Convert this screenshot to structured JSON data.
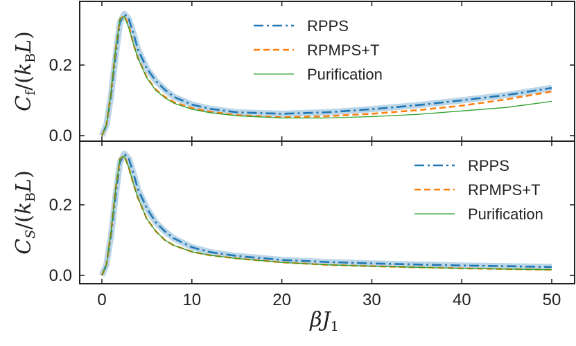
{
  "chart_data": [
    {
      "type": "line",
      "panel": "top",
      "ylabel_parts": {
        "C": "C",
        "sub": "f",
        "slash_open": "/(",
        "k": "k",
        "ksub": "B",
        "L": "L",
        "close": ")"
      },
      "xlim": [
        0,
        50
      ],
      "ylim": [
        0,
        0.35
      ],
      "yticks": [
        0.0,
        0.2
      ],
      "ytick_labels": [
        "0.0",
        "0.2"
      ],
      "legend_placement": "top-right",
      "series": [
        {
          "name": "RPPS",
          "color": "#1f77b4",
          "style": "dashdot",
          "band": true,
          "x": [
            0,
            0.5,
            1,
            1.5,
            2,
            2.5,
            3,
            3.5,
            4,
            5,
            6,
            7,
            8,
            10,
            12,
            15,
            20,
            25,
            30,
            35,
            40,
            45,
            50
          ],
          "y": [
            0.0,
            0.03,
            0.11,
            0.22,
            0.32,
            0.345,
            0.33,
            0.29,
            0.245,
            0.19,
            0.155,
            0.13,
            0.11,
            0.088,
            0.076,
            0.066,
            0.062,
            0.066,
            0.075,
            0.086,
            0.1,
            0.115,
            0.135
          ]
        },
        {
          "name": "RPMPS+T",
          "color": "#ff7f0e",
          "style": "dashed",
          "band": false,
          "x": [
            0,
            0.5,
            1,
            1.5,
            2,
            2.5,
            3,
            3.5,
            4,
            5,
            6,
            7,
            8,
            10,
            12,
            15,
            20,
            25,
            30,
            35,
            40,
            45,
            50
          ],
          "y": [
            0.0,
            0.03,
            0.12,
            0.24,
            0.33,
            0.34,
            0.31,
            0.26,
            0.22,
            0.165,
            0.13,
            0.11,
            0.095,
            0.078,
            0.068,
            0.058,
            0.052,
            0.055,
            0.062,
            0.072,
            0.085,
            0.103,
            0.125
          ]
        },
        {
          "name": "Purification",
          "color": "#2ca02c",
          "style": "solid",
          "band": false,
          "x": [
            0,
            0.5,
            1,
            1.5,
            2,
            2.5,
            3,
            3.5,
            4,
            5,
            6,
            7,
            8,
            10,
            12,
            15,
            20,
            25,
            30,
            35,
            40,
            45,
            50
          ],
          "y": [
            0.0,
            0.03,
            0.12,
            0.24,
            0.33,
            0.338,
            0.305,
            0.26,
            0.22,
            0.163,
            0.128,
            0.107,
            0.092,
            0.075,
            0.065,
            0.056,
            0.05,
            0.05,
            0.054,
            0.06,
            0.07,
            0.08,
            0.097
          ]
        }
      ]
    },
    {
      "type": "line",
      "panel": "bottom",
      "ylabel_parts": {
        "C": "C",
        "sub": "S",
        "slash_open": "/(",
        "k": "k",
        "ksub": "B",
        "L": "L",
        "close": ")"
      },
      "xlabel_parts": {
        "beta": "β",
        "J": "J",
        "sub": "1"
      },
      "xlim": [
        0,
        50
      ],
      "ylim": [
        0,
        0.35
      ],
      "xticks": [
        0,
        10,
        20,
        30,
        40,
        50
      ],
      "xtick_labels": [
        "0",
        "10",
        "20",
        "30",
        "40",
        "50"
      ],
      "yticks": [
        0.0,
        0.2
      ],
      "ytick_labels": [
        "0.0",
        "0.2"
      ],
      "legend_placement": "right",
      "series": [
        {
          "name": "RPPS",
          "color": "#1f77b4",
          "style": "dashdot",
          "band": true,
          "x": [
            0,
            0.5,
            1,
            1.5,
            2,
            2.5,
            3,
            3.5,
            4,
            5,
            6,
            7,
            8,
            10,
            12,
            15,
            20,
            25,
            30,
            35,
            40,
            45,
            50
          ],
          "y": [
            0.0,
            0.03,
            0.11,
            0.22,
            0.32,
            0.345,
            0.33,
            0.29,
            0.245,
            0.19,
            0.15,
            0.125,
            0.105,
            0.08,
            0.066,
            0.055,
            0.044,
            0.038,
            0.034,
            0.031,
            0.028,
            0.026,
            0.024
          ]
        },
        {
          "name": "RPMPS+T",
          "color": "#ff7f0e",
          "style": "dashed",
          "band": false,
          "x": [
            0,
            0.5,
            1,
            1.5,
            2,
            2.5,
            3,
            3.5,
            4,
            5,
            6,
            7,
            8,
            10,
            12,
            15,
            20,
            25,
            30,
            35,
            40,
            45,
            50
          ],
          "y": [
            0.0,
            0.03,
            0.12,
            0.24,
            0.33,
            0.338,
            0.305,
            0.26,
            0.22,
            0.16,
            0.125,
            0.1,
            0.085,
            0.067,
            0.057,
            0.048,
            0.037,
            0.03,
            0.026,
            0.023,
            0.02,
            0.018,
            0.016
          ]
        },
        {
          "name": "Purification",
          "color": "#2ca02c",
          "style": "solid",
          "band": false,
          "x": [
            0,
            0.5,
            1,
            1.5,
            2,
            2.5,
            3,
            3.5,
            4,
            5,
            6,
            7,
            8,
            10,
            12,
            15,
            20,
            25,
            30,
            35,
            40,
            45,
            50
          ],
          "y": [
            0.0,
            0.03,
            0.12,
            0.24,
            0.33,
            0.338,
            0.305,
            0.26,
            0.22,
            0.16,
            0.125,
            0.1,
            0.085,
            0.067,
            0.057,
            0.048,
            0.037,
            0.03,
            0.026,
            0.023,
            0.02,
            0.018,
            0.016
          ]
        }
      ]
    }
  ]
}
